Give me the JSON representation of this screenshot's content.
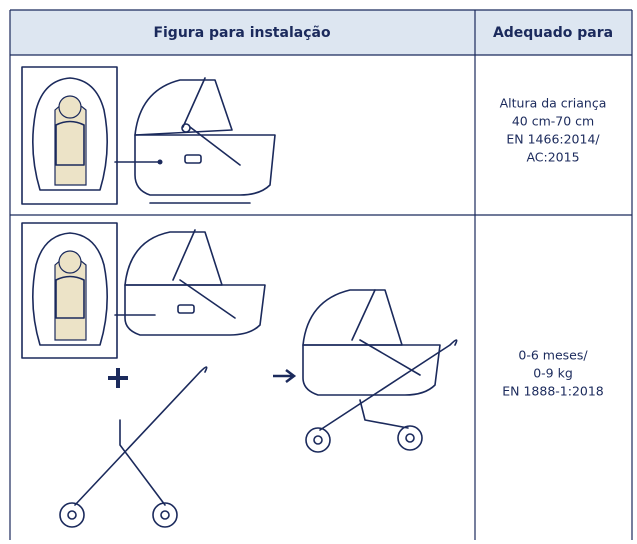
{
  "table": {
    "header": [
      "Figura para instalação",
      "Adequado para"
    ],
    "rows": [
      {
        "suitable": [
          "Altura da criança",
          "40 cm-70 cm",
          "EN 1466:2014/",
          "AC:2015"
        ]
      },
      {
        "suitable": [
          "0-6 meses/",
          "0-9 kg",
          "EN 1888-1:2018"
        ]
      }
    ]
  }
}
